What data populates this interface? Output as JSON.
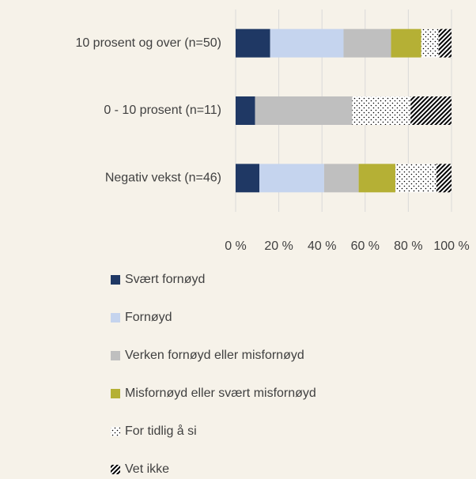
{
  "chart_data": {
    "type": "stacked-bar-horizontal",
    "categories": [
      "10 prosent og over (n=50)",
      "0 - 10 prosent (n=11)",
      "Negativ vekst (n=46)"
    ],
    "series": [
      {
        "name": "Svært fornøyd",
        "color": "#1f3864",
        "values": [
          16,
          9,
          11
        ]
      },
      {
        "name": "Fornøyd",
        "color": "#c5d4ee",
        "values": [
          34,
          0,
          30
        ]
      },
      {
        "name": "Verken fornøyd eller misfornøyd",
        "color": "#bfbfbf",
        "values": [
          22,
          45,
          16
        ]
      },
      {
        "name": "Misfornøyd eller svært misfornøyd",
        "color": "#b5b035",
        "values": [
          14,
          0,
          17
        ]
      },
      {
        "name": "For tidlig å si",
        "color": "#000000",
        "pattern": "dots",
        "values": [
          8,
          27,
          19
        ]
      },
      {
        "name": "Vet ikke",
        "color": "#000000",
        "pattern": "diagonal",
        "values": [
          6,
          19,
          7
        ]
      }
    ],
    "xlim": [
      0,
      100
    ],
    "xticks": [
      {
        "value": 0,
        "label": "0 %"
      },
      {
        "value": 20,
        "label": "20 %"
      },
      {
        "value": 40,
        "label": "40 %"
      },
      {
        "value": 60,
        "label": "60 %"
      },
      {
        "value": 80,
        "label": "80 %"
      },
      {
        "value": 100,
        "label": "100 %"
      }
    ],
    "grid": true,
    "legend": "bottom"
  }
}
